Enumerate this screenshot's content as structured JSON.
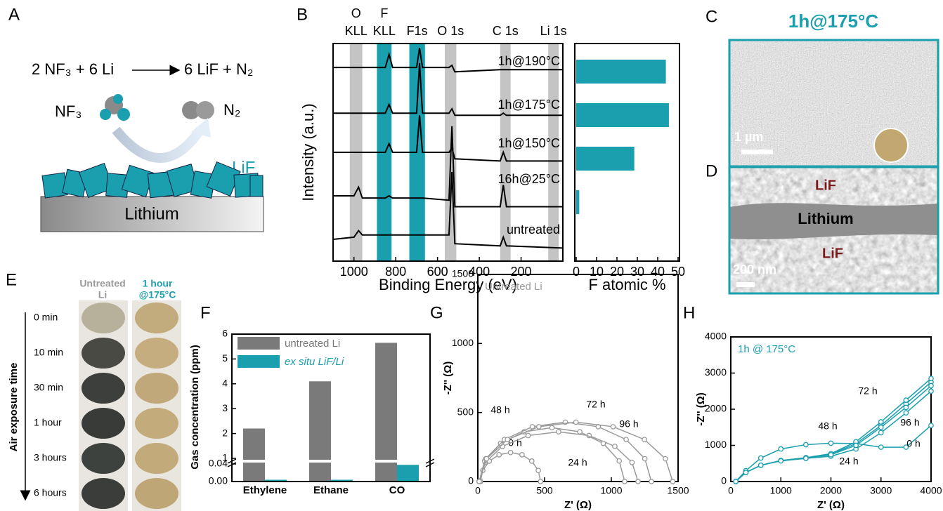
{
  "panel_labels": [
    "A",
    "B",
    "C",
    "D",
    "E",
    "F",
    "G",
    "H"
  ],
  "scheme": {
    "reactants": "2 NF₃ + 6 Li",
    "products": "6 LiF + N₂",
    "reactant_gas": "NF₃",
    "product_gas": "N₂",
    "coating": "LiF",
    "substrate": "Lithium"
  },
  "sem": {
    "title": "1h@175°C",
    "scale_c": "1 µm",
    "scale_d": "200 nm",
    "layer_top": "LiF",
    "middle": "Lithium",
    "layer_bottom": "LiF"
  },
  "photos": {
    "headers": [
      [
        "Untreated",
        "Li"
      ],
      [
        "1 hour",
        "@175°C"
      ]
    ],
    "axis_label": "Air exposure time",
    "times": [
      "0 min",
      "10 min",
      "30 min",
      "1 hour",
      "3 hours",
      "6 hours"
    ]
  },
  "chart_data": [
    {
      "type": "line",
      "xlabel": "Binding Energy (eV)",
      "ylabel": "Intensity (a.u.)",
      "xlim": [
        1100,
        0
      ],
      "xticks": [
        1000,
        800,
        600,
        400,
        200
      ],
      "ylim": [
        0,
        10
      ],
      "bands": [
        {
          "lines": [
            "O",
            "KLL"
          ],
          "range": [
            1020,
            960
          ],
          "color": "#c4c4c4"
        },
        {
          "lines": [
            "F",
            "KLL"
          ],
          "range": [
            890,
            820
          ],
          "color": "#1a9fae"
        },
        {
          "lines": [
            "F1s"
          ],
          "range": [
            735,
            660
          ],
          "color": "#1a9fae"
        },
        {
          "lines": [
            "O 1s"
          ],
          "range": [
            565,
            510
          ],
          "color": "#c4c4c4"
        },
        {
          "lines": [
            "C 1s"
          ],
          "range": [
            300,
            250
          ],
          "color": "#c4c4c4"
        },
        {
          "lines": [
            "Li 1s"
          ],
          "range": [
            70,
            20
          ],
          "color": "#c4c4c4"
        }
      ],
      "x": [
        1100,
        1000,
        978,
        960,
        850,
        832,
        815,
        700,
        686,
        672,
        545,
        531,
        517,
        300,
        285,
        270,
        0
      ],
      "series": [
        {
          "name": "1h@190°C",
          "color": "#000000",
          "values": [
            8.9,
            8.9,
            8.9,
            8.9,
            8.9,
            9.5,
            8.9,
            8.9,
            9.8,
            8.9,
            8.9,
            9.0,
            8.7,
            8.8,
            8.8,
            8.8,
            8.8
          ]
        },
        {
          "name": "1h@175°C",
          "color": "#000000",
          "values": [
            6.8,
            6.8,
            6.8,
            6.8,
            6.8,
            7.2,
            6.8,
            6.8,
            9.1,
            6.8,
            6.8,
            7.0,
            6.7,
            6.7,
            6.8,
            6.7,
            6.7
          ]
        },
        {
          "name": "1h@150°C",
          "color": "#000000",
          "values": [
            5.0,
            5.0,
            5.0,
            5.0,
            5.0,
            5.4,
            5.0,
            5.0,
            6.7,
            5.0,
            5.0,
            5.2,
            4.7,
            4.6,
            5.0,
            4.6,
            4.6
          ]
        },
        {
          "name": "16h@25°C",
          "color": "#000000",
          "values": [
            3.0,
            3.0,
            3.4,
            2.9,
            2.9,
            3.0,
            2.9,
            2.9,
            2.9,
            2.9,
            2.8,
            6.2,
            2.5,
            2.5,
            3.5,
            2.5,
            2.5
          ]
        },
        {
          "name": "untreated",
          "color": "#000000",
          "values": [
            1.0,
            1.1,
            1.4,
            1.2,
            1.2,
            1.2,
            1.2,
            1.2,
            1.2,
            1.2,
            1.2,
            4.1,
            0.8,
            0.7,
            1.1,
            0.7,
            0.6
          ]
        }
      ]
    },
    {
      "type": "bar",
      "orientation": "horizontal",
      "xlabel": "F atomic %",
      "categories": [
        null,
        null,
        null,
        null,
        null
      ],
      "values": [
        44,
        45.5,
        28.5,
        1.5,
        0
      ],
      "color": "#1a9fae",
      "xlim": [
        0,
        50
      ],
      "xticks": [
        0,
        10,
        20,
        30,
        40,
        50
      ]
    },
    {
      "type": "bar",
      "ylabel": "Gas concentration (ppm)",
      "categories": [
        "Ethylene",
        "Ethane",
        "CO"
      ],
      "series": [
        {
          "name": "untreated Li",
          "color": "#7a7a7a",
          "values": [
            2.2,
            4.1,
            5.65
          ]
        },
        {
          "name": "ex situ LiF/Li",
          "color": "#1a9fae",
          "values": [
            0.004,
            0.004,
            0.038
          ]
        }
      ],
      "ylim": [
        0,
        6
      ],
      "axis_break": [
        0.04,
        1
      ],
      "yticks": [
        {
          "value": 0,
          "label": "0.00"
        },
        0.04,
        1,
        2,
        3,
        4,
        5,
        6
      ]
    },
    {
      "type": "scatter",
      "title": "Untreated Li",
      "xlabel": "Z' (Ω)",
      "ylabel": "-Z'' (Ω)",
      "xlim": [
        0,
        1500
      ],
      "ylim": [
        0,
        1500
      ],
      "xticks": [
        0,
        500,
        1000,
        1500
      ],
      "yticks": [
        0,
        500,
        1000,
        1500
      ],
      "series": [
        {
          "name": "0 h",
          "color": "#9a9a9a",
          "x": [
            20,
            37,
            86,
            159,
            245,
            331,
            404,
            453,
            470
          ],
          "values": [
            0,
            80,
            148,
            194,
            210,
            194,
            148,
            80,
            0
          ]
        },
        {
          "name": "24 h",
          "color": "#9a9a9a",
          "x": [
            10,
            55,
            184,
            377,
            605,
            833,
            1026,
            1155,
            1200
          ],
          "values": [
            0,
            138,
            255,
            333,
            360,
            333,
            255,
            138,
            0
          ]
        },
        {
          "name": "48 h",
          "color": "#9a9a9a",
          "x": [
            10,
            51,
            170,
            346,
            555,
            764,
            940,
            1059,
            1100
          ],
          "values": [
            0,
            149,
            276,
            360,
            390,
            360,
            276,
            149,
            0
          ]
        },
        {
          "name": "72 h",
          "color": "#9a9a9a",
          "x": [
            10,
            59,
            199,
            408,
            655,
            902,
            1111,
            1251,
            1300
          ],
          "values": [
            0,
            165,
            304,
            397,
            430,
            397,
            304,
            165,
            0
          ]
        },
        {
          "name": "96 h",
          "color": "#9a9a9a",
          "x": [
            10,
            65,
            222,
            457,
            735,
            1013,
            1248,
            1405,
            1460
          ],
          "values": [
            0,
            165,
            304,
            397,
            430,
            397,
            304,
            165,
            0
          ]
        }
      ]
    },
    {
      "type": "scatter",
      "title": "1h @ 175°C",
      "xlabel": "Z' (Ω)",
      "ylabel": "-Z'' (Ω)",
      "xlim": [
        0,
        4000
      ],
      "ylim": [
        0,
        4000
      ],
      "xticks": [
        0,
        1000,
        2000,
        3000,
        4000
      ],
      "yticks": [
        0,
        1000,
        2000,
        3000,
        4000
      ],
      "x": [
        100,
        300,
        600,
        1000,
        1500,
        2000,
        2500,
        3000,
        3500,
        4000
      ],
      "series": [
        {
          "name": "0 h",
          "color": "#1a9fae",
          "values": [
            0,
            300,
            650,
            900,
            1020,
            1060,
            1050,
            950,
            950,
            1550
          ]
        },
        {
          "name": "24 h",
          "color": "#1a9fae",
          "values": [
            0,
            250,
            450,
            580,
            640,
            700,
            900,
            1350,
            1900,
            2500
          ]
        },
        {
          "name": "48 h",
          "color": "#1a9fae",
          "values": [
            0,
            250,
            450,
            580,
            650,
            750,
            1050,
            1550,
            2150,
            2750
          ]
        },
        {
          "name": "72 h",
          "color": "#1a9fae",
          "values": [
            0,
            250,
            450,
            580,
            660,
            770,
            1100,
            1650,
            2250,
            2850
          ]
        },
        {
          "name": "96 h",
          "color": "#1a9fae",
          "values": [
            0,
            250,
            450,
            570,
            640,
            740,
            1000,
            1500,
            2050,
            2650
          ]
        }
      ]
    }
  ]
}
